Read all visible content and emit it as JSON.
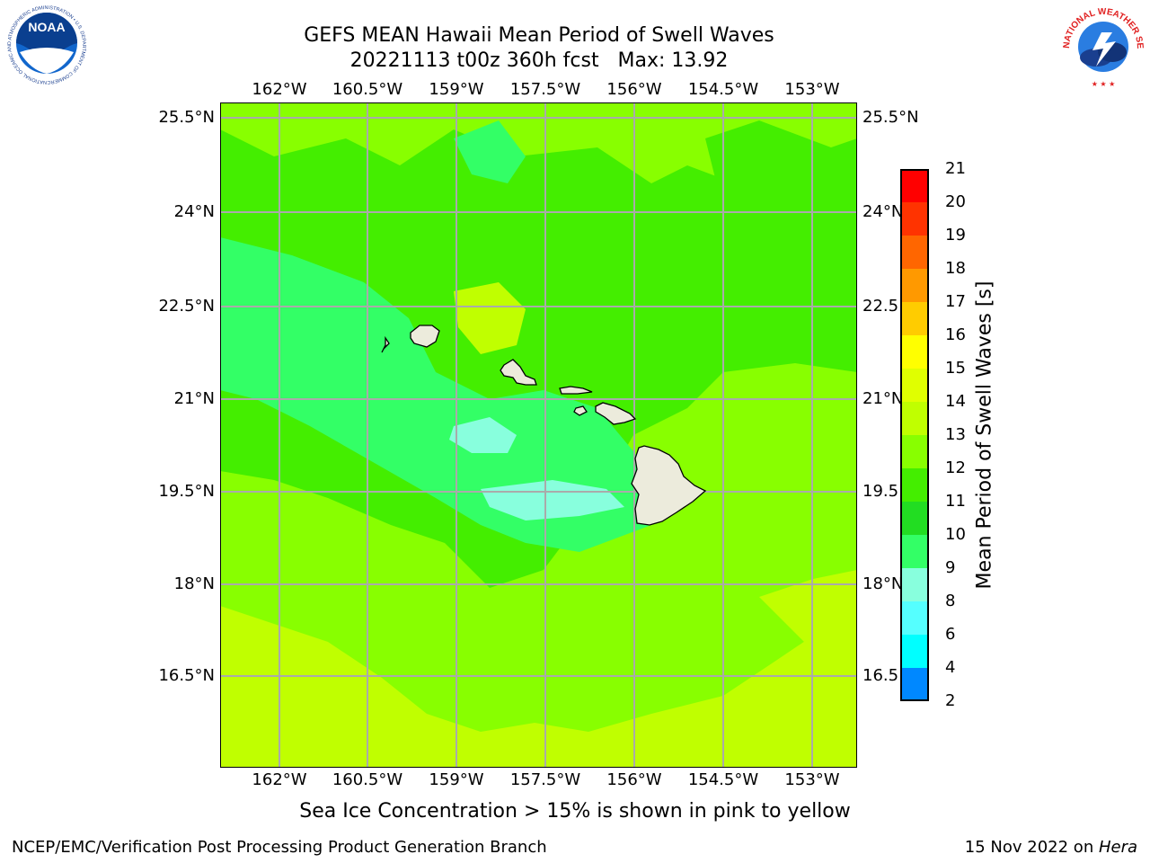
{
  "title": {
    "line1": "GEFS MEAN Hawaii Mean Period of Swell Waves",
    "line2": "20221113 t00z 360h fcst   Max: 13.92"
  },
  "map": {
    "lon_labels": [
      "162°W",
      "160.5°W",
      "159°W",
      "157.5°W",
      "156°W",
      "154.5°W",
      "153°W"
    ],
    "lat_labels": [
      "25.5°N",
      "24°N",
      "22.5°N",
      "21°N",
      "19.5°N",
      "18°N",
      "16.5°N"
    ],
    "lat_labels_right": [
      "25.5°N",
      "24°N",
      "22.5",
      "21°N",
      "19.5",
      "18°N",
      "16.5"
    ]
  },
  "colorbar": {
    "label": "Mean Period of Swell Waves [s]",
    "ticks": [
      "21",
      "20",
      "19",
      "18",
      "17",
      "16",
      "15",
      "14",
      "13",
      "12",
      "11",
      "10",
      "9",
      "8",
      "6",
      "4",
      "2"
    ],
    "colors": [
      "#ff0000",
      "#ff3300",
      "#ff6600",
      "#ff9900",
      "#ffcc00",
      "#ffff00",
      "#e0ff00",
      "#c0ff00",
      "#88ff00",
      "#44ee00",
      "#22dd22",
      "#33ff66",
      "#88ffdd",
      "#55ffff",
      "#00ffff",
      "#0088ff",
      "#0000ff"
    ]
  },
  "note": "Sea Ice Concentration > 15% is shown in pink to yellow",
  "footer": {
    "left": "NCEP/EMC/Verification Post Processing Product Generation Branch",
    "date": "15 Nov 2022 on ",
    "machine": "Hera"
  },
  "logos": {
    "noaa_text": "NOAA",
    "noaa_ring": "NATIONAL OCEANIC AND ATMOSPHERIC ADMINISTRATION • U.S. DEPARTMENT OF COMMERCE",
    "nws_ring": "NATIONAL WEATHER SERVICE"
  }
}
